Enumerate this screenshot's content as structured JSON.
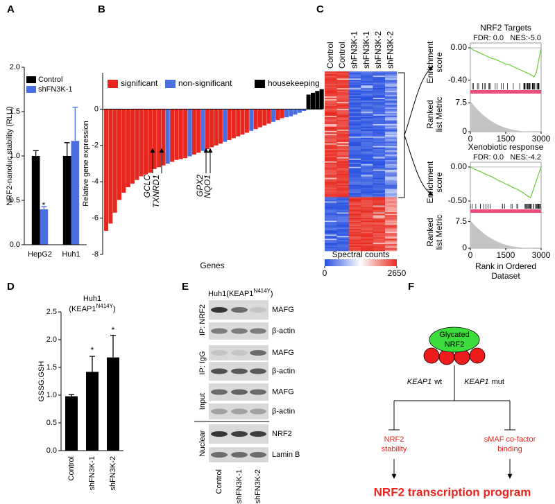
{
  "panels": [
    "A",
    "B",
    "C",
    "D",
    "E",
    "F"
  ],
  "chart_data": [
    {
      "type": "bar",
      "ylabel": "NRF2-nanoluc stability (RLU)",
      "categories": [
        "HepG2",
        "Huh1"
      ],
      "series": [
        {
          "name": "Control",
          "color": "#000000",
          "values": [
            1.0,
            1.0
          ],
          "errors": [
            0.06,
            0.15
          ]
        },
        {
          "name": "shFN3K-1",
          "color": "#4a6fe3",
          "values": [
            0.4,
            1.17
          ],
          "errors": [
            0.03,
            0.38
          ]
        }
      ],
      "annotations": [
        "*"
      ],
      "ylim": [
        0,
        2
      ],
      "yticks": [
        {
          "value": 0,
          "label": "0.0"
        },
        0.5,
        {
          "value": 1,
          "label": "1.0"
        },
        1.5,
        {
          "value": 2,
          "label": "2.0"
        }
      ]
    },
    {
      "type": "bar",
      "ylabel": "Relative gene expression",
      "xlabel": "Genes",
      "legend": [
        {
          "name": "significant",
          "color": "#e8261e"
        },
        {
          "name": "non-significant",
          "color": "#4a6fe3"
        },
        {
          "name": "housekeeping",
          "color": "#000000"
        }
      ],
      "values": [
        -6.7,
        -6.3,
        -5.7,
        -5.0,
        -4.6,
        -4.3,
        -4.1,
        -3.9,
        -3.7,
        -3.6,
        -3.5,
        -3.3,
        -3.2,
        -3.1,
        -3.0,
        -2.9,
        -2.8,
        -2.75,
        -2.7,
        -2.6,
        -2.5,
        -2.4,
        -2.3,
        -2.2,
        -2.1,
        -2.0,
        -1.9,
        -1.8,
        -1.7,
        -1.6,
        -1.5,
        -1.4,
        -1.3,
        -1.2,
        -1.1,
        -1.0,
        -0.9,
        -0.8,
        -0.7,
        -0.6,
        -0.5,
        -0.45,
        -0.4,
        -0.3,
        -0.2,
        -0.1,
        0.8,
        0.9,
        1.0,
        1.1
      ],
      "colors": [
        "#e8261e",
        "#e8261e",
        "#e8261e",
        "#e8261e",
        "#e8261e",
        "#e8261e",
        "#e8261e",
        "#e8261e",
        "#e8261e",
        "#e8261e",
        "#e8261e",
        "#e8261e",
        "#e8261e",
        "#e8261e",
        "#4a6fe3",
        "#e8261e",
        "#e8261e",
        "#e8261e",
        "#e8261e",
        "#4a6fe3",
        "#e8261e",
        "#e8261e",
        "#4a6fe3",
        "#e8261e",
        "#e8261e",
        "#e8261e",
        "#e8261e",
        "#4a6fe3",
        "#e8261e",
        "#e8261e",
        "#e8261e",
        "#e8261e",
        "#e8261e",
        "#4a6fe3",
        "#e8261e",
        "#e8261e",
        "#e8261e",
        "#e8261e",
        "#4a6fe3",
        "#e8261e",
        "#e8261e",
        "#4a6fe3",
        "#4a6fe3",
        "#4a6fe3",
        "#4a6fe3",
        "#4a6fe3",
        "#000000",
        "#000000",
        "#000000",
        "#000000"
      ],
      "annotations": [
        "GCLC",
        "TXNRD1",
        "GPX2",
        "NQO1"
      ],
      "ylim": [
        -8,
        2
      ],
      "yticks": [
        -8,
        -6,
        -4,
        -2,
        0
      ]
    },
    {
      "type": "heatmap",
      "columns": [
        "Control",
        "Control",
        "shFN3K-1",
        "shFN3K-1",
        "shFN3K-2",
        "shFN3K-2"
      ],
      "colorbar_label": "Spectral counts",
      "zlim": [
        0,
        2650
      ],
      "zticks": [
        0,
        2650
      ],
      "colors": [
        "#2850e0",
        "#ffffff",
        "#e82a20"
      ]
    },
    {
      "type": "line",
      "title": "NRF2 Targets",
      "annotations": [
        "FDR: 0.0",
        "NES:-5.0"
      ],
      "ylabel": [
        "Enrichment",
        "score"
      ],
      "y2label": [
        "Ranked",
        "list Metric"
      ],
      "color": "#66cc33",
      "x": [
        0,
        150,
        300,
        450,
        600,
        750,
        900,
        1050,
        1200,
        1350,
        1500,
        1650,
        1800,
        1950,
        2100,
        2250,
        2400,
        2550,
        2700,
        2800,
        2900,
        3000
      ],
      "values": [
        0,
        -0.03,
        -0.05,
        -0.07,
        -0.09,
        -0.11,
        -0.13,
        -0.14,
        -0.16,
        -0.18,
        -0.2,
        -0.21,
        -0.23,
        -0.25,
        -0.27,
        -0.29,
        -0.31,
        -0.33,
        -0.36,
        -0.3,
        -0.15,
        0
      ],
      "xlim": [
        0,
        3000
      ],
      "xticks": [
        0,
        1500,
        3000
      ],
      "ylim": [
        -0.42,
        0.06
      ],
      "yticks": [
        {
          "value": 0,
          "label": "0.00"
        },
        {
          "value": -0.4,
          "label": "-0.40"
        }
      ],
      "y2lim": [
        0,
        9
      ],
      "y2ticks": [
        0,
        7.5
      ]
    },
    {
      "type": "line",
      "title": "Xenobiotic response",
      "annotations": [
        "FDR: 0.0",
        "NES:-4.2"
      ],
      "ylabel": [
        "Enrichment",
        "score"
      ],
      "y2label": [
        "Ranked",
        "list Metric"
      ],
      "xlabel": [
        "Rank in Ordered",
        "Dataset"
      ],
      "color": "#66cc33",
      "x": [
        0,
        150,
        300,
        450,
        600,
        750,
        900,
        1050,
        1200,
        1350,
        1500,
        1650,
        1800,
        1950,
        2100,
        2250,
        2400,
        2550,
        2700,
        2800,
        2900,
        3000
      ],
      "values": [
        0,
        -0.03,
        -0.05,
        -0.07,
        -0.1,
        -0.12,
        -0.14,
        -0.17,
        -0.2,
        -0.22,
        -0.25,
        -0.27,
        -0.3,
        -0.32,
        -0.35,
        -0.38,
        -0.42,
        -0.45,
        -0.3,
        -0.2,
        -0.1,
        0
      ],
      "xlim": [
        0,
        3000
      ],
      "xticks": [
        0,
        1500,
        3000
      ],
      "ylim": [
        -0.52,
        0.07
      ],
      "yticks": [
        {
          "value": 0,
          "label": "0.00"
        },
        {
          "value": -0.5,
          "label": "-0.50"
        }
      ],
      "y2lim": [
        0,
        9
      ],
      "y2ticks": [
        0,
        7.5
      ]
    },
    {
      "type": "bar",
      "title": "Huh1",
      "subtitle": [
        "(KEAP1",
        "N414Y",
        ")"
      ],
      "ylabel": "GSSG:GSH",
      "categories": [
        "Control",
        "shFN3K-1",
        "shFN3K-2"
      ],
      "values": [
        0.98,
        1.42,
        1.68
      ],
      "errors": [
        0.03,
        0.28,
        0.4
      ],
      "color": "#000000",
      "annotations": [
        "*",
        "*"
      ],
      "ylim": [
        0,
        2.5
      ],
      "yticks": [
        {
          "value": 0,
          "label": "0.0"
        },
        0.5,
        {
          "value": 1,
          "label": "1.0"
        },
        1.5,
        {
          "value": 2,
          "label": "2.0"
        },
        2.5
      ]
    }
  ],
  "blot": {
    "title": [
      "Huh1(KEAP1",
      "N414Y",
      ")"
    ],
    "groups": [
      {
        "name": "IP: NRF2",
        "bands": [
          "MAFG",
          "β-actin"
        ]
      },
      {
        "name": "IP: IgG",
        "bands": [
          "MAFG",
          "β-actin"
        ]
      },
      {
        "name": "Input",
        "bands": [
          "MAFG",
          "β-actin"
        ]
      },
      {
        "name": "Nuclear",
        "bands": [
          "NRF2",
          "Lamin B"
        ]
      }
    ],
    "lanes": [
      "Control",
      "shFN3K-1",
      "shFN3K-2"
    ]
  },
  "diagram": {
    "node": [
      "Glycated",
      "NRF2"
    ],
    "branches": [
      {
        "gene": "KEAP1",
        "label": "wt",
        "outcome": [
          "NRF2",
          "stability"
        ]
      },
      {
        "gene": "KEAP1",
        "label": "mut",
        "outcome": [
          "sMAF co-factor",
          "binding"
        ]
      }
    ],
    "result": "NRF2 transcription program"
  }
}
